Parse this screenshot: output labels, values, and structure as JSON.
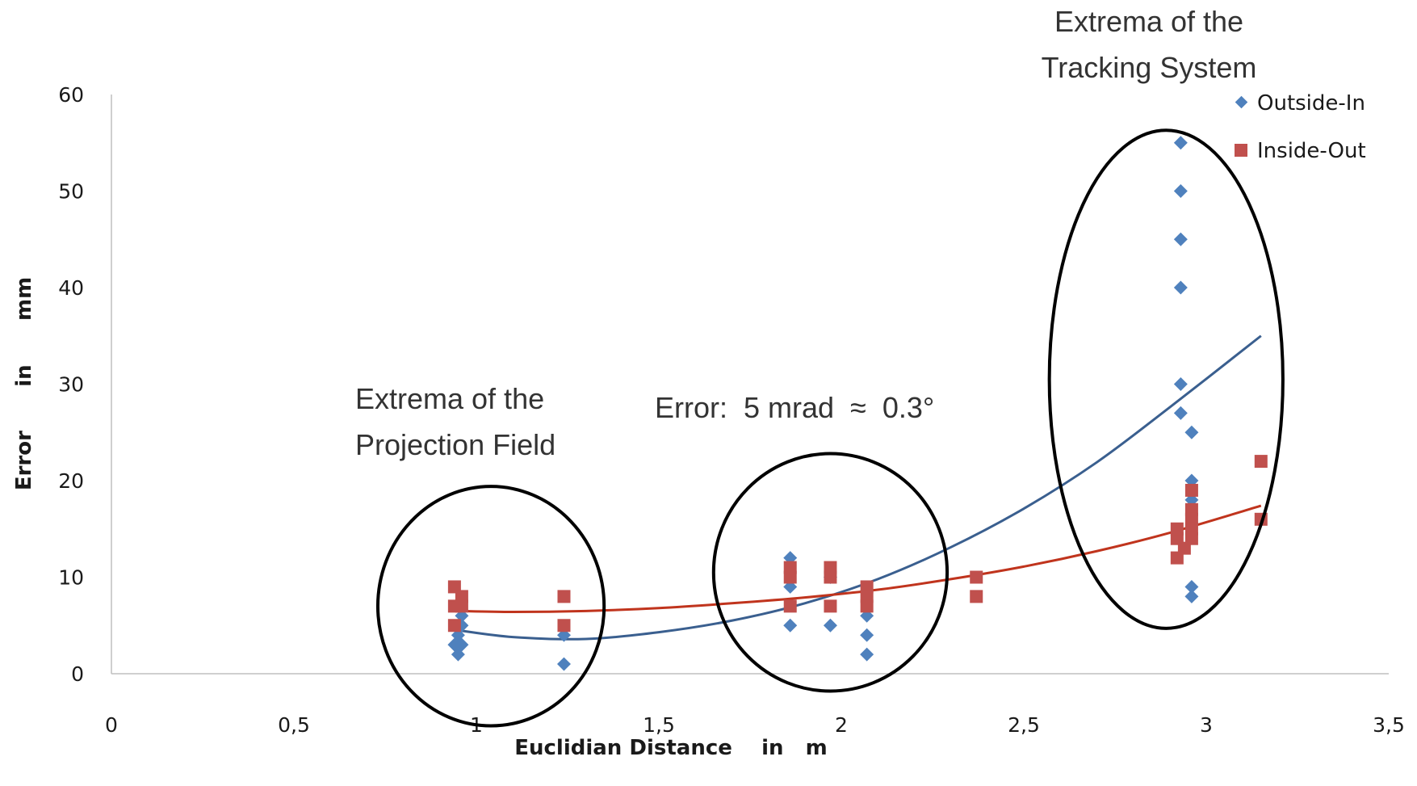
{
  "chart_data": {
    "type": "scatter",
    "title": "",
    "xlabel": "Euclidian Distance    in   m",
    "ylabel": "Error      in      mm",
    "xlim": [
      0,
      3.5
    ],
    "ylim": [
      0,
      60
    ],
    "x_ticks": [
      "0",
      "0,5",
      "1",
      "1,5",
      "2",
      "2,5",
      "3",
      "3,5"
    ],
    "y_ticks": [
      "0",
      "10",
      "20",
      "30",
      "40",
      "50",
      "60"
    ],
    "grid": false,
    "legend_position": "top-right",
    "series": [
      {
        "name": "Outside-In",
        "marker": "diamond",
        "color": "#4f81bd",
        "points": [
          [
            0.94,
            3
          ],
          [
            0.95,
            2
          ],
          [
            0.95,
            4
          ],
          [
            0.96,
            3
          ],
          [
            0.96,
            5
          ],
          [
            0.96,
            6
          ],
          [
            1.24,
            1
          ],
          [
            1.24,
            4
          ],
          [
            1.86,
            12
          ],
          [
            1.86,
            9
          ],
          [
            1.86,
            5
          ],
          [
            1.97,
            5
          ],
          [
            1.97,
            10
          ],
          [
            2.07,
            6
          ],
          [
            2.07,
            4
          ],
          [
            2.07,
            2
          ],
          [
            2.93,
            55
          ],
          [
            2.93,
            50
          ],
          [
            2.93,
            45
          ],
          [
            2.93,
            40
          ],
          [
            2.93,
            30
          ],
          [
            2.93,
            27
          ],
          [
            2.96,
            25
          ],
          [
            2.96,
            20
          ],
          [
            2.96,
            18
          ],
          [
            2.96,
            9
          ],
          [
            2.96,
            8
          ]
        ]
      },
      {
        "name": "Inside-Out",
        "marker": "square",
        "color": "#c0504d",
        "points": [
          [
            0.94,
            9
          ],
          [
            0.94,
            7
          ],
          [
            0.94,
            5
          ],
          [
            0.96,
            8
          ],
          [
            0.96,
            7
          ],
          [
            1.24,
            8
          ],
          [
            1.24,
            5
          ],
          [
            1.86,
            11
          ],
          [
            1.86,
            10
          ],
          [
            1.86,
            7
          ],
          [
            1.97,
            11
          ],
          [
            1.97,
            10
          ],
          [
            1.97,
            7
          ],
          [
            2.07,
            9
          ],
          [
            2.07,
            8
          ],
          [
            2.07,
            7
          ],
          [
            2.37,
            10
          ],
          [
            2.37,
            8
          ],
          [
            2.92,
            12
          ],
          [
            2.92,
            14
          ],
          [
            2.92,
            15
          ],
          [
            2.94,
            13
          ],
          [
            2.96,
            19
          ],
          [
            2.96,
            17
          ],
          [
            2.96,
            16
          ],
          [
            2.96,
            15
          ],
          [
            2.96,
            14
          ],
          [
            3.15,
            22
          ],
          [
            3.15,
            16
          ]
        ]
      }
    ],
    "trendlines": [
      {
        "series": "Outside-In",
        "type": "polynomial",
        "color": "#3a5f8f",
        "points": [
          [
            0.95,
            4.5
          ],
          [
            1.1,
            3.8
          ],
          [
            1.3,
            3.6
          ],
          [
            1.5,
            4.3
          ],
          [
            1.7,
            5.5
          ],
          [
            1.9,
            7.3
          ],
          [
            2.1,
            9.8
          ],
          [
            2.3,
            13.1
          ],
          [
            2.5,
            17.1
          ],
          [
            2.7,
            21.9
          ],
          [
            2.9,
            27.6
          ],
          [
            3.15,
            35
          ]
        ]
      },
      {
        "series": "Inside-Out",
        "type": "polynomial",
        "color": "#c0341d",
        "points": [
          [
            0.95,
            6.5
          ],
          [
            1.1,
            6.4
          ],
          [
            1.3,
            6.5
          ],
          [
            1.5,
            6.8
          ],
          [
            1.7,
            7.3
          ],
          [
            1.9,
            7.9
          ],
          [
            2.1,
            8.7
          ],
          [
            2.3,
            9.8
          ],
          [
            2.5,
            11.1
          ],
          [
            2.7,
            12.7
          ],
          [
            2.9,
            14.6
          ],
          [
            3.15,
            17.4
          ]
        ]
      }
    ],
    "ellipses": [
      {
        "name": "projection-field-ellipse",
        "cx": 1.04,
        "cy": 7.0,
        "rx": 0.31,
        "ry": 12.4
      },
      {
        "name": "middle-ellipse",
        "cx": 1.97,
        "cy": 10.5,
        "rx": 0.32,
        "ry": 12.3
      },
      {
        "name": "tracking-system-ellipse",
        "cx": 2.89,
        "cy": 30.5,
        "rx": 0.32,
        "ry": 25.8
      }
    ],
    "annotations": {
      "projection_line1": "Extrema of the",
      "projection_line2": "Projection Field",
      "error_note": "Error:  5 mrad  ≈  0.3°",
      "tracking_line1": "Extrema of the",
      "tracking_line2": "Tracking System"
    }
  }
}
